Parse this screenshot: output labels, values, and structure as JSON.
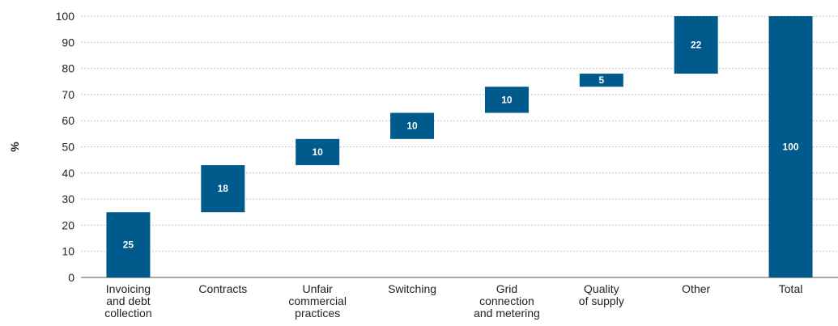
{
  "chart_data": {
    "type": "bar",
    "subtype": "waterfall",
    "ylabel": "%",
    "ylim": [
      0,
      100
    ],
    "yticks": [
      "0",
      "10",
      "20",
      "30",
      "40",
      "50",
      "60",
      "70",
      "80",
      "90",
      "100"
    ],
    "grid": true,
    "categories": [
      [
        "Invoicing",
        "and debt",
        "collection"
      ],
      [
        "Contracts"
      ],
      [
        "Unfair",
        "commercial",
        "practices"
      ],
      [
        "Switching"
      ],
      [
        "Grid",
        "connection",
        "and metering"
      ],
      [
        "Quality",
        "of supply"
      ],
      [
        "Other"
      ],
      [
        "Total"
      ]
    ],
    "values": [
      25,
      18,
      10,
      10,
      10,
      5,
      22,
      100
    ],
    "labels": [
      "25",
      "18",
      "10",
      "10",
      "10",
      "5",
      "22",
      "100"
    ],
    "bar_color": "#005b8c"
  }
}
